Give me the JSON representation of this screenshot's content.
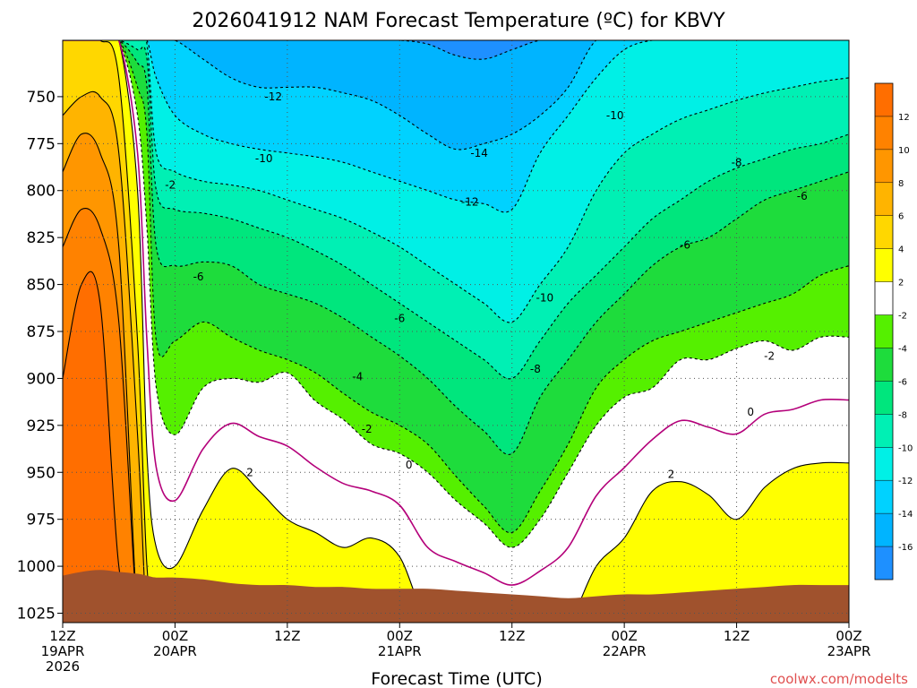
{
  "page": {
    "title": "2026041912 NAM Forecast Temperature (ºC) for KBVY",
    "credit": "coolwx.com/modelts"
  },
  "chart_data": {
    "type": "heatmap",
    "title": "2026041912 NAM Forecast Temperature (ºC) for KBVY",
    "xlabel": "Forecast Time (UTC)",
    "ylabel": "",
    "ylim": [
      1030,
      720
    ],
    "xlim": [
      0,
      84
    ],
    "y_ticks": [
      750,
      775,
      800,
      825,
      850,
      875,
      900,
      925,
      950,
      975,
      1000,
      1025
    ],
    "x_ticks": [
      {
        "hour": 0,
        "line1": "12Z",
        "line2": "19APR",
        "line3": "2026"
      },
      {
        "hour": 12,
        "line1": "00Z",
        "line2": "20APR",
        "line3": ""
      },
      {
        "hour": 24,
        "line1": "12Z",
        "line2": "",
        "line3": ""
      },
      {
        "hour": 36,
        "line1": "00Z",
        "line2": "21APR",
        "line3": ""
      },
      {
        "hour": 48,
        "line1": "12Z",
        "line2": "",
        "line3": ""
      },
      {
        "hour": 60,
        "line1": "00Z",
        "line2": "22APR",
        "line3": ""
      },
      {
        "hour": 72,
        "line1": "12Z",
        "line2": "",
        "line3": ""
      },
      {
        "hour": 84,
        "line1": "00Z",
        "line2": "23APR",
        "line3": ""
      }
    ],
    "grid": true,
    "colorbar": {
      "placement": "right",
      "bins": [
        {
          "from": -18,
          "to": -16,
          "color": "#1e90ff"
        },
        {
          "from": -16,
          "to": -14,
          "color": "#00b4ff"
        },
        {
          "from": -14,
          "to": -12,
          "color": "#00d2ff"
        },
        {
          "from": -12,
          "to": -10,
          "color": "#00f0e6"
        },
        {
          "from": -10,
          "to": -8,
          "color": "#00f0b4"
        },
        {
          "from": -8,
          "to": -6,
          "color": "#00e67d"
        },
        {
          "from": -6,
          "to": -4,
          "color": "#1edc3c"
        },
        {
          "from": -4,
          "to": -2,
          "color": "#55f000"
        },
        {
          "from": -2,
          "to": 2,
          "color": "#ffffff"
        },
        {
          "from": 2,
          "to": 4,
          "color": "#ffff00"
        },
        {
          "from": 4,
          "to": 6,
          "color": "#ffd700"
        },
        {
          "from": 6,
          "to": 8,
          "color": "#ffb400"
        },
        {
          "from": 8,
          "to": 10,
          "color": "#ff9600"
        },
        {
          "from": 10,
          "to": 12,
          "color": "#ff8200"
        },
        {
          "from": 12,
          "to": 14,
          "color": "#ff6e00"
        }
      ],
      "tick_labels": [
        "-16",
        "-14",
        "-12",
        "-10",
        "-8",
        "-6",
        "-4",
        "-2",
        "2",
        "4",
        "6",
        "8",
        "10",
        "12"
      ]
    },
    "hours": [
      0,
      2,
      4,
      6,
      8,
      9,
      10,
      12,
      15,
      18,
      21,
      24,
      27,
      30,
      33,
      36,
      39,
      42,
      45,
      48,
      51,
      54,
      57,
      60,
      63,
      66,
      69,
      72,
      75,
      78,
      81,
      84
    ],
    "surface_pressure": [
      1005,
      1003,
      1002,
      1003,
      1004,
      1005,
      1006,
      1006,
      1007,
      1009,
      1010,
      1010,
      1011,
      1011,
      1012,
      1012,
      1012,
      1013,
      1014,
      1015,
      1016,
      1017,
      1016,
      1015,
      1015,
      1014,
      1013,
      1012,
      1011,
      1010,
      1010,
      1010
    ],
    "isotherms": [
      {
        "value": 12,
        "color": "#ff6e00",
        "p": [
          900,
          850,
          860,
          1000,
          1030,
          1030,
          1030,
          1030,
          1030,
          1030,
          1030,
          1030,
          1030,
          1030,
          1030,
          1030,
          1030,
          1030,
          1030,
          1030,
          1030,
          1030,
          1030,
          1030,
          1030,
          1030,
          1030,
          1030,
          1030,
          1030,
          1030,
          1030
        ]
      },
      {
        "value": 10,
        "color": "#ff8200",
        "p": [
          830,
          810,
          820,
          870,
          1030,
          1030,
          1030,
          1030,
          1030,
          1030,
          1030,
          1030,
          1030,
          1030,
          1030,
          1030,
          1030,
          1030,
          1030,
          1030,
          1030,
          1030,
          1030,
          1030,
          1030,
          1030,
          1030,
          1030,
          1030,
          1030,
          1030,
          1030
        ]
      },
      {
        "value": 8,
        "color": "#ff9600",
        "p": [
          790,
          770,
          780,
          830,
          1030,
          1030,
          1030,
          1030,
          1030,
          1030,
          1030,
          1030,
          1030,
          1030,
          1030,
          1030,
          1030,
          1030,
          1030,
          1030,
          1030,
          1030,
          1030,
          1030,
          1030,
          1030,
          1030,
          1030,
          1030,
          1030,
          1030,
          1030
        ]
      },
      {
        "value": 6,
        "color": "#ffb400",
        "p": [
          760,
          750,
          750,
          780,
          930,
          1030,
          1030,
          1030,
          1030,
          1030,
          1030,
          1030,
          1030,
          1030,
          1030,
          1030,
          1030,
          1030,
          1030,
          1030,
          1030,
          1030,
          1030,
          1030,
          1030,
          1030,
          1030,
          1030,
          1030,
          1030,
          1030,
          1030
        ]
      },
      {
        "value": 4,
        "color": "#ffd700",
        "p": [
          720,
          720,
          720,
          740,
          880,
          1000,
          1030,
          1030,
          1030,
          1030,
          1030,
          1030,
          1030,
          1030,
          1030,
          1030,
          1030,
          1030,
          1030,
          1030,
          1030,
          1030,
          1030,
          1030,
          1030,
          1030,
          1030,
          1030,
          1030,
          1030,
          1030,
          1030
        ]
      },
      {
        "value": 2,
        "color": "#ffff00",
        "p": [
          720,
          720,
          720,
          720,
          800,
          940,
          990,
          1000,
          970,
          948,
          960,
          975,
          982,
          990,
          985,
          995,
          1030,
          1030,
          1030,
          1030,
          1030,
          1030,
          1000,
          985,
          960,
          955,
          962,
          975,
          958,
          948,
          945,
          945
        ]
      },
      {
        "value": -2,
        "color": "#ffffff",
        "p": [
          720,
          720,
          720,
          720,
          760,
          820,
          905,
          930,
          905,
          900,
          902,
          897,
          912,
          922,
          935,
          940,
          950,
          965,
          977,
          990,
          975,
          950,
          925,
          910,
          905,
          890,
          890,
          884,
          880,
          885,
          878,
          878
        ]
      },
      {
        "value": -4,
        "color": "#55f000",
        "p": [
          720,
          720,
          720,
          720,
          745,
          770,
          880,
          880,
          870,
          878,
          885,
          890,
          897,
          908,
          918,
          925,
          935,
          952,
          968,
          982,
          960,
          935,
          905,
          890,
          880,
          875,
          870,
          865,
          860,
          855,
          845,
          840
        ]
      },
      {
        "value": -6,
        "color": "#1edc3c",
        "p": [
          720,
          720,
          720,
          720,
          732,
          745,
          830,
          840,
          838,
          840,
          850,
          855,
          860,
          868,
          878,
          888,
          900,
          915,
          928,
          940,
          910,
          890,
          870,
          855,
          840,
          830,
          825,
          815,
          805,
          800,
          795,
          790
        ]
      },
      {
        "value": -8,
        "color": "#00e67d",
        "p": [
          720,
          720,
          720,
          720,
          725,
          730,
          800,
          810,
          812,
          815,
          820,
          825,
          832,
          840,
          850,
          860,
          870,
          880,
          890,
          900,
          880,
          860,
          845,
          830,
          815,
          805,
          795,
          788,
          783,
          778,
          775,
          770
        ]
      },
      {
        "value": -10,
        "color": "#00f0b4",
        "p": [
          720,
          720,
          720,
          720,
          720,
          722,
          780,
          790,
          795,
          797,
          800,
          805,
          810,
          815,
          822,
          830,
          840,
          850,
          860,
          870,
          850,
          830,
          800,
          780,
          770,
          762,
          757,
          752,
          748,
          745,
          742,
          740
        ]
      },
      {
        "value": -12,
        "color": "#00f0e6",
        "p": [
          720,
          720,
          720,
          720,
          720,
          720,
          740,
          760,
          770,
          775,
          778,
          780,
          782,
          785,
          790,
          795,
          800,
          805,
          807,
          810,
          780,
          760,
          740,
          725,
          720,
          720,
          720,
          720,
          720,
          720,
          720,
          720
        ]
      },
      {
        "value": -14,
        "color": "#00d2ff",
        "p": [
          720,
          720,
          720,
          720,
          720,
          720,
          720,
          720,
          730,
          740,
          745,
          745,
          745,
          748,
          752,
          760,
          770,
          778,
          775,
          770,
          760,
          745,
          720,
          720,
          720,
          720,
          720,
          720,
          720,
          720,
          720,
          720
        ]
      },
      {
        "value": -16,
        "color": "#00b4ff",
        "p": [
          720,
          720,
          720,
          720,
          720,
          720,
          720,
          720,
          720,
          720,
          720,
          720,
          720,
          720,
          720,
          720,
          722,
          728,
          730,
          725,
          720,
          720,
          720,
          720,
          720,
          720,
          720,
          720,
          720,
          720,
          720,
          720
        ]
      }
    ],
    "contour_labels": [
      {
        "text": "-12",
        "hour": 22.5,
        "p": 750
      },
      {
        "text": "-10",
        "hour": 21.5,
        "p": 783
      },
      {
        "text": "-14",
        "hour": 44.5,
        "p": 780
      },
      {
        "text": "-12",
        "hour": 43.5,
        "p": 806
      },
      {
        "text": "-10",
        "hour": 59,
        "p": 760
      },
      {
        "text": "-8",
        "hour": 72,
        "p": 785
      },
      {
        "text": "-6",
        "hour": 79,
        "p": 803
      },
      {
        "text": "-2",
        "hour": 11.5,
        "p": 797
      },
      {
        "text": "-6",
        "hour": 14.5,
        "p": 846
      },
      {
        "text": "-6",
        "hour": 36,
        "p": 868
      },
      {
        "text": "-6",
        "hour": 66.5,
        "p": 829
      },
      {
        "text": "-10",
        "hour": 51.5,
        "p": 857
      },
      {
        "text": "-8",
        "hour": 50.5,
        "p": 895
      },
      {
        "text": "-4",
        "hour": 31.5,
        "p": 899
      },
      {
        "text": "-2",
        "hour": 32.5,
        "p": 927
      },
      {
        "text": "-2",
        "hour": 75.5,
        "p": 888
      },
      {
        "text": "0",
        "hour": 37,
        "p": 946
      },
      {
        "text": "0",
        "hour": 73.5,
        "p": 918
      },
      {
        "text": "2",
        "hour": 20,
        "p": 950
      },
      {
        "text": "2",
        "hour": 65,
        "p": 951
      }
    ]
  }
}
